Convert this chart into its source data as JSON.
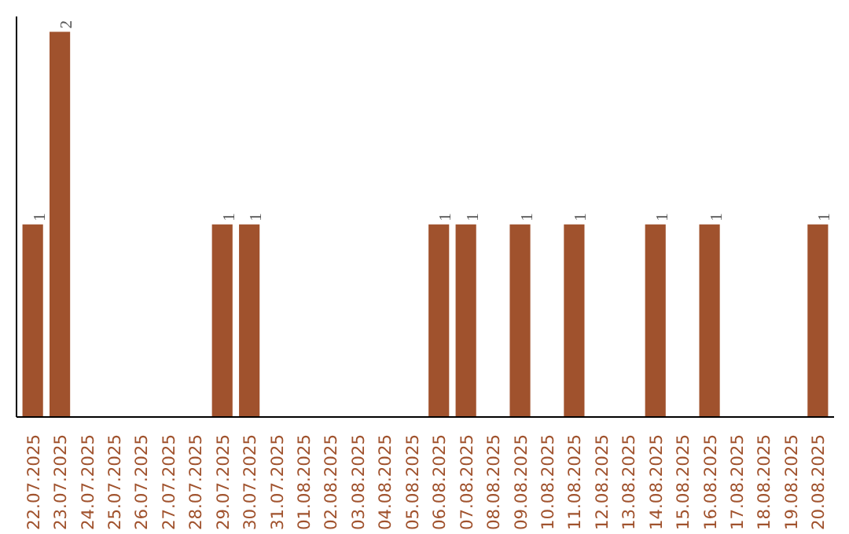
{
  "chart_data": {
    "type": "bar",
    "categories": [
      "22.07.2025",
      "23.07.2025",
      "24.07.2025",
      "25.07.2025",
      "26.07.2025",
      "27.07.2025",
      "28.07.2025",
      "29.07.2025",
      "30.07.2025",
      "31.07.2025",
      "01.08.2025",
      "02.08.2025",
      "03.08.2025",
      "04.08.2025",
      "05.08.2025",
      "06.08.2025",
      "07.08.2025",
      "08.08.2025",
      "09.08.2025",
      "10.08.2025",
      "11.08.2025",
      "12.08.2025",
      "13.08.2025",
      "14.08.2025",
      "15.08.2025",
      "16.08.2025",
      "17.08.2025",
      "18.08.2025",
      "19.08.2025",
      "20.08.2025"
    ],
    "values": [
      1,
      2,
      0,
      0,
      0,
      0,
      0,
      1,
      1,
      0,
      0,
      0,
      0,
      0,
      0,
      1,
      1,
      0,
      1,
      0,
      1,
      0,
      0,
      1,
      0,
      1,
      0,
      0,
      0,
      1
    ],
    "value_labels": [
      "1",
      "2",
      null,
      null,
      null,
      null,
      null,
      "1",
      "1",
      null,
      null,
      null,
      null,
      null,
      null,
      "1",
      "1",
      null,
      "1",
      null,
      "1",
      null,
      null,
      "1",
      null,
      "1",
      null,
      null,
      null,
      "1"
    ],
    "color": "#a0522d"
  }
}
